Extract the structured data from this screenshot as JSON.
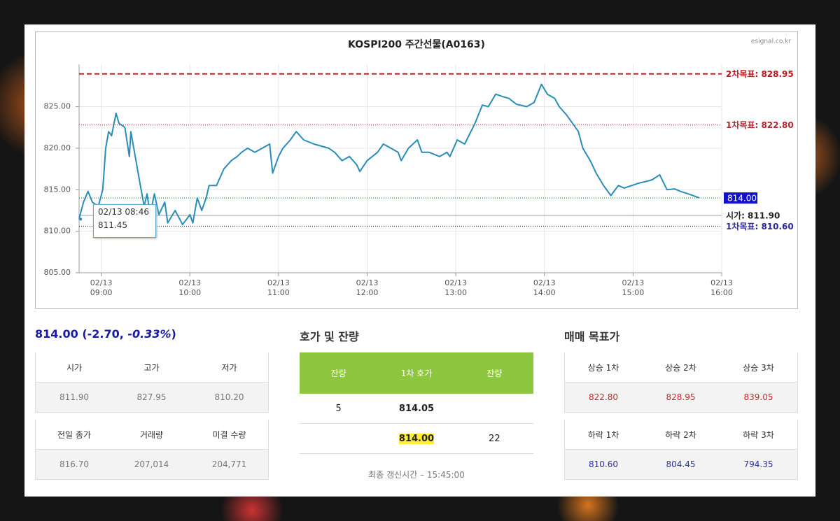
{
  "site": "esignal.co.kr",
  "chart_data": {
    "type": "line",
    "title": "KOSPI200 주간선물(A0163)",
    "x": [
      "02/13 08:45",
      "02/13 08:48",
      "02/13 08:51",
      "02/13 08:54",
      "02/13 08:58",
      "02/13 09:01",
      "02/13 09:03",
      "02/13 09:05",
      "02/13 09:07",
      "02/13 09:10",
      "02/13 09:12",
      "02/13 09:16",
      "02/13 09:19",
      "02/13 09:20",
      "02/13 09:24",
      "02/13 09:26",
      "02/13 09:29",
      "02/13 09:31",
      "02/13 09:33",
      "02/13 09:36",
      "02/13 09:39",
      "02/13 09:43",
      "02/13 09:45",
      "02/13 09:50",
      "02/13 09:53",
      "02/13 09:55",
      "02/13 09:58",
      "02/13 10:00",
      "02/13 10:02",
      "02/13 10:05",
      "02/13 10:08",
      "02/13 10:11",
      "02/13 10:13",
      "02/13 10:18",
      "02/13 10:23",
      "02/13 10:28",
      "02/13 10:32",
      "02/13 10:35",
      "02/13 10:39",
      "02/13 10:44",
      "02/13 10:49",
      "02/13 10:54",
      "02/13 10:56",
      "02/13 11:00",
      "02/13 11:03",
      "02/13 11:08",
      "02/13 11:12",
      "02/13 11:17",
      "02/13 11:24",
      "02/13 11:34",
      "02/13 11:38",
      "02/13 11:43",
      "02/13 11:48",
      "02/13 11:53",
      "02/13 11:55",
      "02/13 12:00",
      "02/13 12:07",
      "02/13 12:11",
      "02/13 12:16",
      "02/13 12:21",
      "02/13 12:23",
      "02/13 12:28",
      "02/13 12:34",
      "02/13 12:37",
      "02/13 12:42",
      "02/13 12:49",
      "02/13 12:54",
      "02/13 12:56",
      "02/13 13:01",
      "02/13 13:06",
      "02/13 13:13",
      "02/13 13:18",
      "02/13 13:22",
      "02/13 13:27",
      "02/13 13:32",
      "02/13 13:36",
      "02/13 13:41",
      "02/13 13:48",
      "02/13 13:53",
      "02/13 13:58",
      "02/13 14:02",
      "02/13 14:07",
      "02/13 14:10",
      "02/13 14:15",
      "02/13 14:19",
      "02/13 14:23",
      "02/13 14:26",
      "02/13 14:31",
      "02/13 14:35",
      "02/13 14:40",
      "02/13 14:45",
      "02/13 14:50",
      "02/13 14:54",
      "02/13 14:59",
      "02/13 15:04",
      "02/13 15:09",
      "02/13 15:13",
      "02/13 15:18",
      "02/13 15:23",
      "02/13 15:28",
      "02/13 15:32",
      "02/13 15:39",
      "02/13 15:45"
    ],
    "series": [
      {
        "color": "#2a8db8",
        "values": [
          811.5,
          813.5,
          814.8,
          813.5,
          813,
          815,
          820,
          822,
          821.5,
          824.2,
          823,
          822.5,
          819,
          822,
          818,
          816,
          813,
          814.5,
          812,
          814.5,
          812,
          813.5,
          811,
          812.5,
          811.5,
          810.8,
          811.5,
          812,
          811,
          814,
          812.5,
          814,
          815.5,
          815.5,
          817.5,
          818.5,
          819,
          819.5,
          820,
          819.5,
          820,
          820.5,
          817,
          819,
          820,
          821,
          822,
          821,
          820.5,
          820,
          819.5,
          818.5,
          819,
          818,
          817.2,
          818.5,
          819.5,
          820.5,
          820,
          819.5,
          818.5,
          820,
          821,
          819.5,
          819.5,
          819,
          819.5,
          819,
          821,
          820.5,
          823,
          825.2,
          825,
          826.5,
          826.2,
          826,
          825.3,
          825,
          825.5,
          827.7,
          826.5,
          826,
          825,
          824,
          823,
          822,
          820,
          818.5,
          817,
          815.5,
          814.3,
          815.5,
          815.2,
          815.5,
          815.8,
          816,
          816.2,
          816.8,
          815,
          815.1,
          814.8,
          814.4,
          814
        ]
      }
    ],
    "xlim": [
      "02/13 08:45",
      "02/13 16:00"
    ],
    "xticks": [
      {
        "value": "02/13 09:00",
        "label": "02/13\n09:00"
      },
      {
        "value": "02/13 10:00",
        "label": "02/13\n10:00"
      },
      {
        "value": "02/13 11:00",
        "label": "02/13\n11:00"
      },
      {
        "value": "02/13 12:00",
        "label": "02/13\n12:00"
      },
      {
        "value": "02/13 13:00",
        "label": "02/13\n13:00"
      },
      {
        "value": "02/13 14:00",
        "label": "02/13\n14:00"
      },
      {
        "value": "02/13 15:00",
        "label": "02/13\n15:00"
      },
      {
        "value": "02/13 16:00",
        "label": "02/13\n16:00"
      }
    ],
    "ylim": [
      805,
      830.1
    ],
    "yticks": [
      {
        "value": 805,
        "label": "805.00"
      },
      {
        "value": 810,
        "label": "810.00"
      },
      {
        "value": 815,
        "label": "815.00"
      },
      {
        "value": 820,
        "label": "820.00"
      },
      {
        "value": 825,
        "label": "825.00"
      }
    ],
    "grid": true,
    "reference_lines": [
      {
        "value": 828.95,
        "label": "2차목표: 828.95",
        "color": "#c0141b",
        "style": "dashed"
      },
      {
        "value": 822.8,
        "label": "1차목표: 822.80",
        "color": "#b0282c",
        "style": "dotted"
      },
      {
        "value": 814,
        "label": "814.00",
        "color": "#3a9a3a",
        "style": "dotted",
        "boxed": true
      },
      {
        "value": 811.9,
        "label": "시가: 811.90",
        "color": "#aaaaaa",
        "style": "solid"
      },
      {
        "value": 810.6,
        "label": "1차목표: 810.60",
        "color": "#2a2aa0",
        "style": "dotted"
      }
    ],
    "tooltip": {
      "time": "02/13 08:46",
      "value": 811.45
    }
  },
  "quote": {
    "main": "814.00 (-2.70, ",
    "pct": "-0.33%",
    "close": ")"
  },
  "summary_tables": [
    {
      "headers": [
        "시가",
        "고가",
        "저가"
      ],
      "values": [
        "811.90",
        "827.95",
        "810.20"
      ]
    },
    {
      "headers": [
        "전일 종가",
        "거래량",
        "미결 수량"
      ],
      "values": [
        "816.70",
        "207,014",
        "204,771"
      ]
    }
  ],
  "orderbook": {
    "title": "호가 및 잔량",
    "headers": [
      "잔량",
      "1차 호가",
      "잔량"
    ],
    "rows": [
      [
        "5",
        "814.05",
        null
      ],
      [
        null,
        "814.00",
        "22"
      ]
    ],
    "updated": "최종 갱신시간 – 15:45:00"
  },
  "targets": {
    "title": "매매 목표가",
    "tables": [
      {
        "headers": [
          "상승 1차",
          "상승 2차",
          "상승 3차"
        ],
        "values": [
          "822.80",
          "828.95",
          "839.05"
        ],
        "color": "#c8262c"
      },
      {
        "headers": [
          "하락 1차",
          "하락 2차",
          "하락 3차"
        ],
        "values": [
          "810.60",
          "804.45",
          "794.35"
        ],
        "color": "#2b2ba8"
      }
    ]
  }
}
